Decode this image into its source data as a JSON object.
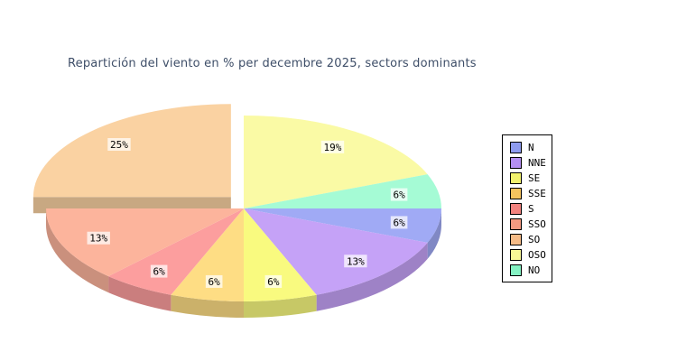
{
  "chart_data": {
    "type": "pie",
    "style": "3d-exploded",
    "title": "Repartición del viento en % per decembre 2025, sectors dominants",
    "title_color": "#3e4e68",
    "unit": "%",
    "start_angle_clockwise_from_top": 90,
    "direction": "clockwise",
    "legend_position": "right",
    "label_background": "rgba(255,255,255,0.72)",
    "sectors": [
      {
        "label": "N",
        "value": 6,
        "color": "#a0aaf5",
        "legend_color": "#8e9bef",
        "exploded": false
      },
      {
        "label": "NNE",
        "value": 13,
        "color": "#c5a2f7",
        "legend_color": "#b58ff2",
        "exploded": false
      },
      {
        "label": "SE",
        "value": 6,
        "color": "#f9fa7f",
        "legend_color": "#f2f26e",
        "exploded": false
      },
      {
        "label": "SSE",
        "value": 6,
        "color": "#fedd84",
        "legend_color": "#f5c35e",
        "exploded": false
      },
      {
        "label": "S",
        "value": 6,
        "color": "#fc9e9e",
        "legend_color": "#f2837f",
        "exploded": false
      },
      {
        "label": "SSO",
        "value": 13,
        "color": "#fcb49c",
        "legend_color": "#f59a80",
        "exploded": false
      },
      {
        "label": "SO",
        "value": 25,
        "color": "#fad2a2",
        "legend_color": "#f5bb87",
        "exploded": true
      },
      {
        "label": "OSO",
        "value": 19,
        "color": "#fafaa5",
        "legend_color": "#f7f796",
        "exploded": false
      },
      {
        "label": "NO",
        "value": 6,
        "color": "#a5fbd5",
        "legend_color": "#85f2c3",
        "exploded": false
      }
    ]
  }
}
